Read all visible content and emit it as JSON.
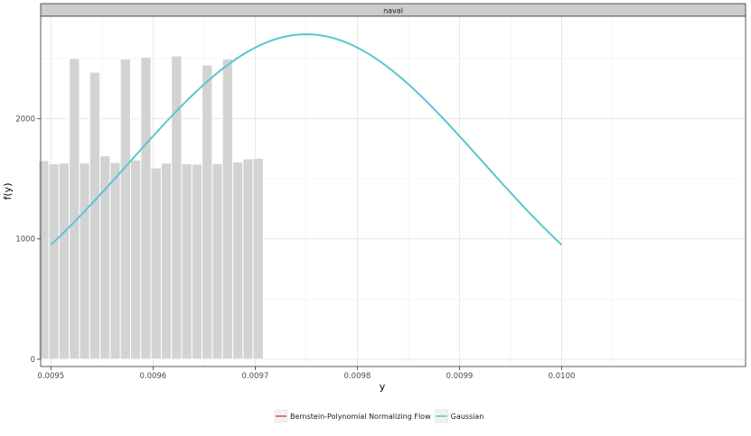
{
  "chart_data": {
    "type": "bar",
    "facet_label": "naval",
    "xlabel": "y",
    "ylabel": "f(y)",
    "xlim": [
      0.00949,
      0.01018
    ],
    "ylim": [
      -60,
      2850
    ],
    "x_ticks": [
      {
        "value": 0.0095,
        "label": "0.0095"
      },
      {
        "value": 0.0096,
        "label": "0.0096"
      },
      {
        "value": 0.0097,
        "label": "0.0097"
      },
      {
        "value": 0.0098,
        "label": "0.0098"
      },
      {
        "value": 0.0099,
        "label": "0.0099"
      },
      {
        "value": 0.01,
        "label": "0.0100"
      }
    ],
    "y_ticks": [
      {
        "value": 0,
        "label": "0"
      },
      {
        "value": 1000,
        "label": "1000"
      },
      {
        "value": 2000,
        "label": "2000"
      }
    ],
    "grid": true,
    "histogram": {
      "bin_start": 0.009488,
      "bin_width": 1e-05,
      "values": [
        1650,
        1625,
        1630,
        2500,
        1630,
        2385,
        1690,
        1635,
        2495,
        1655,
        2510,
        1590,
        1630,
        2520,
        1625,
        1620,
        2445,
        1625,
        2495,
        1640,
        1665,
        1670
      ],
      "fill": "#d3d3d3",
      "edge": "#ffffff"
    },
    "series": [
      {
        "name": "Gaussian",
        "kind": "density-curve",
        "color": "#5bc6d0",
        "mean": 0.00975,
        "sd": 0.000173,
        "x_range": [
          0.0095,
          0.01
        ],
        "peak": 2700
      }
    ],
    "legend": {
      "position": "bottom",
      "entries": [
        {
          "label": "Bernstein-Polynomial Normalizing Flow",
          "color": "#e8534a"
        },
        {
          "label": "Gaussian",
          "color": "#5bc6d0"
        }
      ]
    }
  }
}
